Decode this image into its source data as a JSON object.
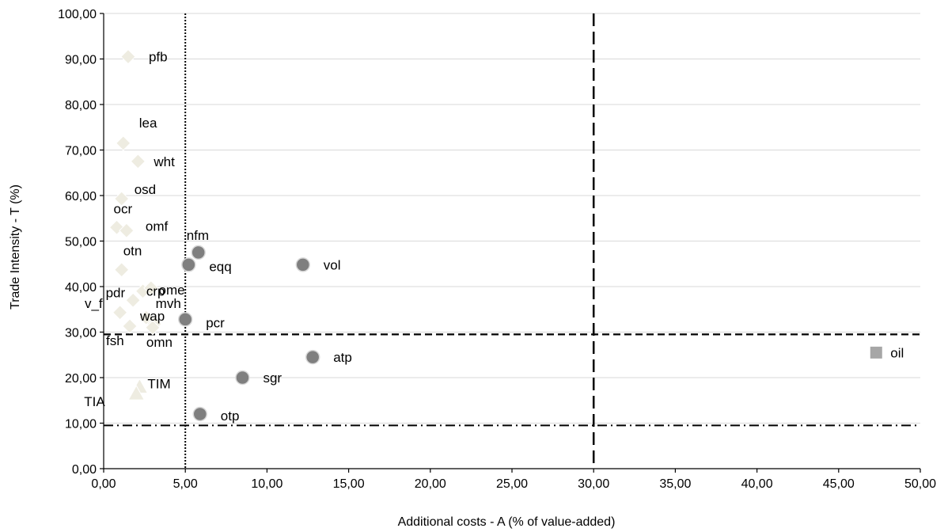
{
  "chart_data": {
    "type": "scatter",
    "title": "",
    "xlabel": "Additional costs - A (% of value-added)",
    "ylabel": "Trade Intensity - T (%)",
    "xlim": [
      0,
      50
    ],
    "ylim": [
      0,
      100
    ],
    "x_ticks": [
      "0,00",
      "5,00",
      "10,00",
      "15,00",
      "20,00",
      "25,00",
      "30,00",
      "35,00",
      "40,00",
      "45,00",
      "50,00"
    ],
    "y_ticks": [
      "0,00",
      "10,00",
      "20,00",
      "30,00",
      "40,00",
      "50,00",
      "60,00",
      "70,00",
      "80,00",
      "90,00",
      "100,00"
    ],
    "grid": "horizontal",
    "legend": "none",
    "reference_lines": [
      {
        "orientation": "vertical",
        "value": 5,
        "style": "dotted"
      },
      {
        "orientation": "vertical",
        "value": 30,
        "style": "long-dash"
      },
      {
        "orientation": "horizontal",
        "value": 29.5,
        "style": "dashed"
      },
      {
        "orientation": "horizontal",
        "value": 9.5,
        "style": "dash-dot"
      }
    ],
    "colors": {
      "light": "#eeece1",
      "dark": "#7f7f7f",
      "square": "#a6a6a6"
    },
    "series": [
      {
        "marker": "diamond",
        "color": "#eeece1",
        "points": [
          {
            "label": "pfb",
            "x": 1.5,
            "y": 90.5
          },
          {
            "label": "lea",
            "x": 1.2,
            "y": 71.5
          },
          {
            "label": "wht",
            "x": 2.1,
            "y": 67.5
          },
          {
            "label": "osd",
            "x": 1.1,
            "y": 59.3
          },
          {
            "label": "ocr",
            "x": 0.8,
            "y": 53.0
          },
          {
            "label": "omf",
            "x": 1.4,
            "y": 52.3
          },
          {
            "label": "otn",
            "x": 1.1,
            "y": 43.7
          },
          {
            "label": "ome",
            "x": 2.4,
            "y": 39.0
          },
          {
            "label": "crp",
            "x": 2.9,
            "y": 39.7
          },
          {
            "label": "pdr",
            "x": 1.8,
            "y": 37.0
          },
          {
            "label": "v_f",
            "x": 1.0,
            "y": 34.3
          },
          {
            "label": "mvh",
            "x": 2.6,
            "y": 33.2
          },
          {
            "label": "wap",
            "x": 3.1,
            "y": 31.8
          },
          {
            "label": "fsh",
            "x": 1.6,
            "y": 31.3
          },
          {
            "label": "omn",
            "x": 3.0,
            "y": 31.0
          }
        ]
      },
      {
        "marker": "triangle",
        "color": "#eeece1",
        "points": [
          {
            "label": "TIM",
            "x": 2.2,
            "y": 18.0
          },
          {
            "label": "TIA",
            "x": 2.0,
            "y": 16.5
          }
        ]
      },
      {
        "marker": "circle",
        "color": "#7f7f7f",
        "points": [
          {
            "label": "nfm",
            "x": 5.8,
            "y": 47.5
          },
          {
            "label": "eqq",
            "x": 5.2,
            "y": 44.8
          },
          {
            "label": "vol",
            "x": 12.2,
            "y": 44.8
          },
          {
            "label": "pcr",
            "x": 5.0,
            "y": 32.8
          },
          {
            "label": "atp",
            "x": 12.8,
            "y": 24.5
          },
          {
            "label": "sgr",
            "x": 8.5,
            "y": 20.0
          },
          {
            "label": "otp",
            "x": 5.9,
            "y": 12.0
          }
        ]
      },
      {
        "marker": "square",
        "color": "#a6a6a6",
        "points": [
          {
            "label": "oil",
            "x": 47.3,
            "y": 25.5
          }
        ]
      }
    ]
  }
}
